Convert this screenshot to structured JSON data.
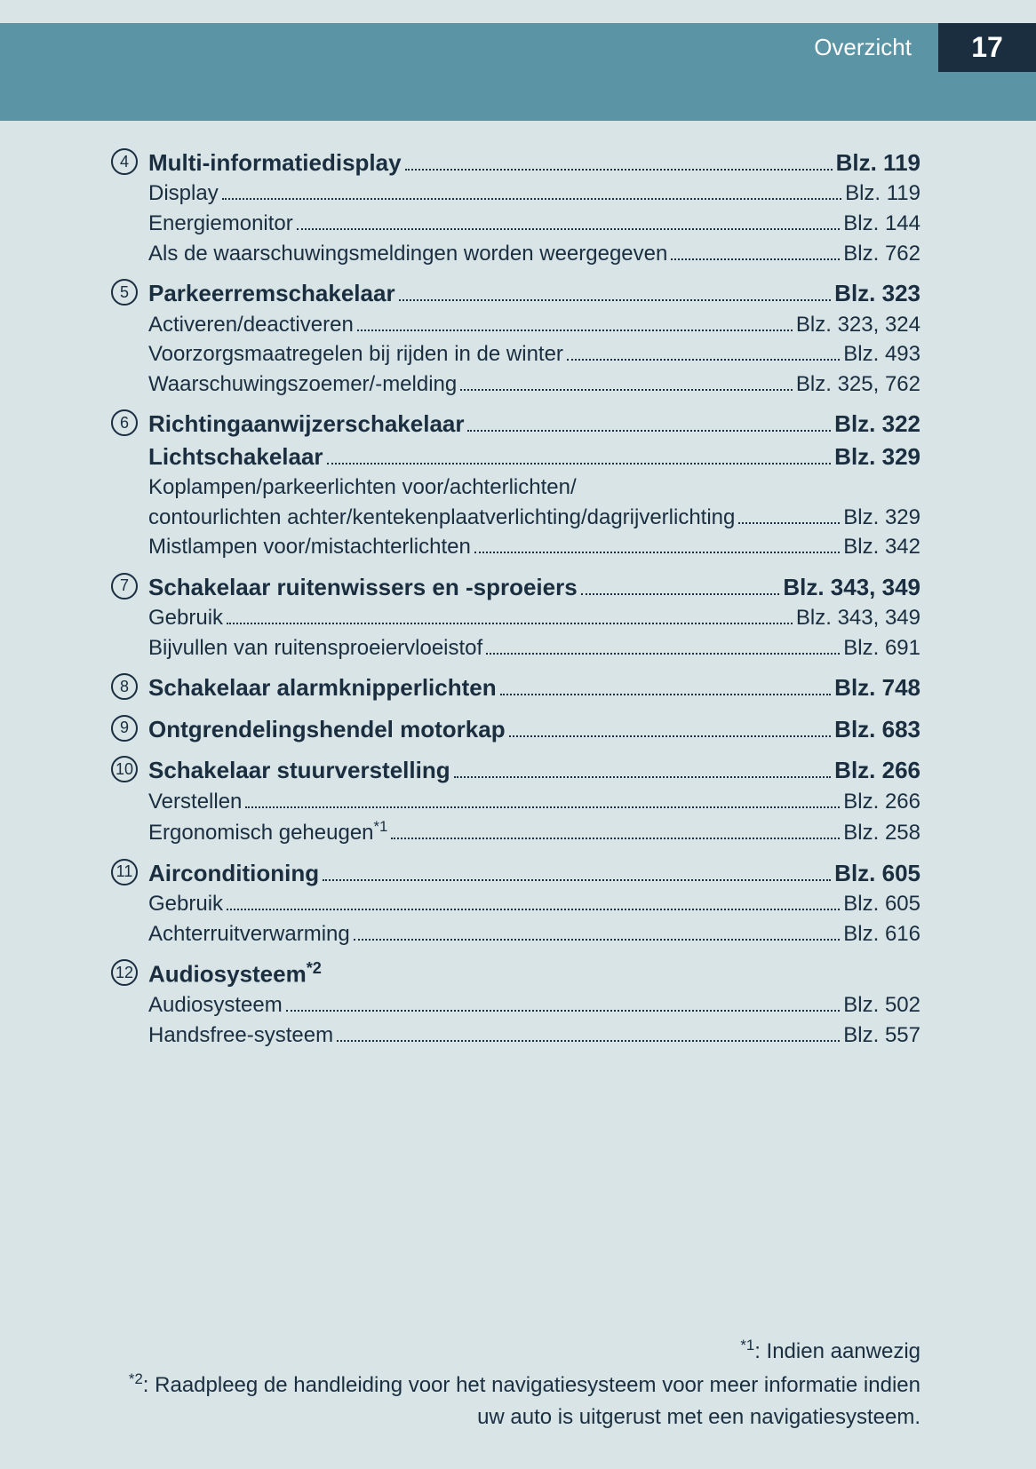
{
  "header": {
    "title": "Overzicht",
    "page": "17"
  },
  "colors": {
    "page_bg": "#d8e4e6",
    "band": "#5b95a5",
    "darkbox": "#1a2e40",
    "text": "#1a2e40"
  },
  "sections": [
    {
      "num": "4",
      "head": {
        "label": "Multi-informatiedisplay",
        "page": "Blz. 119"
      },
      "subs": [
        {
          "label": "Display",
          "page": "Blz. 119"
        },
        {
          "label": "Energiemonitor",
          "page": "Blz. 144"
        },
        {
          "label": "Als de waarschuwingsmeldingen worden weergegeven",
          "page": "Blz. 762"
        }
      ]
    },
    {
      "num": "5",
      "head": {
        "label": "Parkeerremschakelaar",
        "page": "Blz. 323"
      },
      "subs": [
        {
          "label": "Activeren/deactiveren",
          "page": "Blz. 323, 324"
        },
        {
          "label": "Voorzorgsmaatregelen bij rijden in de winter",
          "page": "Blz. 493"
        },
        {
          "label": "Waarschuwingszoemer/-melding",
          "page": "Blz. 325, 762"
        }
      ]
    },
    {
      "num": "6",
      "head": {
        "label": "Richtingaanwijzerschakelaar",
        "page": "Blz. 322"
      },
      "subs": [
        {
          "label": "Lichtschakelaar",
          "page": "Blz. 329",
          "bold": true
        },
        {
          "label_wrap": "Koplampen/parkeerlichten voor/achterlichten/",
          "label": "contourlichten achter/kentekenplaatverlichting/dagrijverlichting",
          "page": "Blz. 329"
        },
        {
          "label": "Mistlampen voor/mistachterlichten",
          "page": "Blz. 342"
        }
      ]
    },
    {
      "num": "7",
      "head": {
        "label": "Schakelaar ruitenwissers en -sproeiers",
        "page": "Blz. 343, 349"
      },
      "subs": [
        {
          "label": "Gebruik",
          "page": "Blz. 343, 349"
        },
        {
          "label": "Bijvullen van ruitensproeiervloeistof",
          "page": "Blz. 691"
        }
      ]
    },
    {
      "num": "8",
      "head": {
        "label": "Schakelaar alarmknipperlichten",
        "page": "Blz. 748"
      },
      "subs": []
    },
    {
      "num": "9",
      "head": {
        "label": "Ontgrendelingshendel motorkap",
        "page": "Blz. 683"
      },
      "subs": []
    },
    {
      "num": "10",
      "head": {
        "label": "Schakelaar stuurverstelling",
        "page": "Blz. 266"
      },
      "subs": [
        {
          "label": "Verstellen",
          "page": "Blz. 266"
        },
        {
          "label": "Ergonomisch geheugen",
          "sup": "*1",
          "page": "Blz. 258"
        }
      ]
    },
    {
      "num": "11",
      "head": {
        "label": "Airconditioning",
        "page": "Blz. 605"
      },
      "subs": [
        {
          "label": "Gebruik",
          "page": "Blz. 605"
        },
        {
          "label": "Achterruitverwarming",
          "page": "Blz. 616"
        }
      ]
    },
    {
      "num": "12",
      "head": {
        "label": "Audiosysteem",
        "sup": "*2",
        "page": ""
      },
      "subs": [
        {
          "label": "Audiosysteem",
          "page": "Blz. 502"
        },
        {
          "label": "Handsfree-systeem",
          "page": "Blz. 557"
        }
      ]
    }
  ],
  "footnotes": [
    {
      "mark": "*1",
      "text": ": Indien aanwezig"
    },
    {
      "mark": "*2",
      "text": ": Raadpleeg de handleiding voor het navigatiesysteem voor meer informatie indien uw auto is uitgerust met een navigatiesysteem."
    }
  ]
}
